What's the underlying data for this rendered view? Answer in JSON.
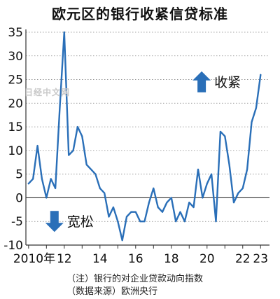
{
  "chart_data": {
    "type": "line",
    "title": "欧元区的银行收紧信贷标准",
    "ylim": [
      -10,
      35
    ],
    "y_ticks": [
      35,
      30,
      25,
      20,
      15,
      10,
      5,
      0,
      -5,
      -10
    ],
    "x_tick_labels": [
      {
        "year": 2010,
        "label": "2010年"
      },
      {
        "year": 2012,
        "label": "12"
      },
      {
        "year": 2014,
        "label": "14"
      },
      {
        "year": 2016,
        "label": "16"
      },
      {
        "year": 2018,
        "label": "18"
      },
      {
        "year": 2020,
        "label": "20"
      },
      {
        "year": 2022,
        "label": "22"
      },
      {
        "year": 2023,
        "label": "23"
      }
    ],
    "xlim": [
      2009.85,
      2023.5
    ],
    "grid": "horizontal dotted",
    "series": [
      {
        "color": "#2a6fb8",
        "x": [
          2010.0,
          2010.25,
          2010.5,
          2010.75,
          2011.0,
          2011.25,
          2011.5,
          2011.75,
          2012.0,
          2012.25,
          2012.5,
          2012.75,
          2013.0,
          2013.25,
          2013.5,
          2013.75,
          2014.0,
          2014.25,
          2014.5,
          2014.75,
          2015.0,
          2015.25,
          2015.5,
          2015.75,
          2016.0,
          2016.25,
          2016.5,
          2016.75,
          2017.0,
          2017.25,
          2017.5,
          2017.75,
          2018.0,
          2018.25,
          2018.5,
          2018.75,
          2019.0,
          2019.25,
          2019.5,
          2019.75,
          2020.0,
          2020.25,
          2020.5,
          2020.75,
          2021.0,
          2021.25,
          2021.5,
          2021.75,
          2022.0,
          2022.25,
          2022.5,
          2022.75,
          2023.0
        ],
        "y": [
          3,
          4,
          11,
          4,
          0,
          4,
          2,
          19,
          35,
          9,
          10,
          15,
          13,
          7,
          6,
          5,
          2,
          1,
          -4,
          -2,
          -5,
          -9,
          -4,
          -3,
          -3,
          -5,
          -5,
          -1,
          2,
          -2,
          -3,
          -1,
          0,
          -5,
          -3,
          -5,
          -1,
          -2,
          6,
          0,
          3,
          5,
          -5,
          14,
          13,
          7,
          -1,
          1,
          2,
          6,
          16,
          19,
          26
        ]
      }
    ],
    "annotations": [
      {
        "text": "收紧",
        "direction": "up",
        "at_year": 2019.7,
        "at_value": 24.5
      },
      {
        "text": "宽松",
        "direction": "down",
        "at_year": 2011.45,
        "at_value": -5
      }
    ],
    "colors": {
      "line": "#2a6fb8",
      "arrow": "#2a6fb8",
      "axis": "#333333",
      "grid": "#888888"
    }
  },
  "notes": {
    "note_1": "（注）银行的对企业贷款动向指数",
    "note_2": "（数据来源）欧洲央行"
  },
  "watermark": "日经中文网"
}
